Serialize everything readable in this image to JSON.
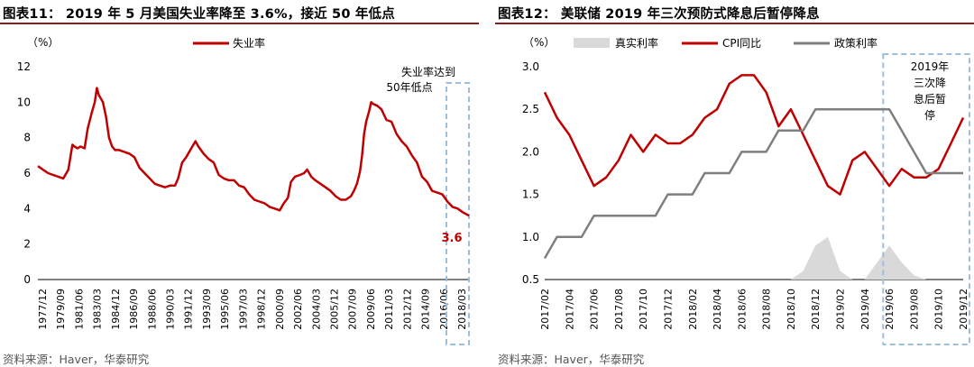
{
  "left": {
    "title": "图表11：  2019 年 5 月美国失业率降至 3.6%，接近 50 年低点",
    "source": "资料来源：Haver，华泰研究",
    "unit_label": "（%）",
    "annotation_lines": [
      "失业率达到",
      "50年低点"
    ],
    "end_value_label": "3.6",
    "colors": {
      "line": "#c00000",
      "box": "#9cbfe0"
    },
    "chart_data": {
      "type": "line",
      "title": "",
      "xlabel": "",
      "ylabel": "%",
      "ylim": [
        0,
        12
      ],
      "yticks": [
        0,
        2,
        4,
        6,
        8,
        10,
        12
      ],
      "x_range": [
        1977.0,
        2019.42
      ],
      "xtick_labels": [
        "1977/12",
        "1979/09",
        "1981/06",
        "1983/03",
        "1984/12",
        "1986/09",
        "1988/06",
        "1990/03",
        "1991/12",
        "1993/09",
        "1995/06",
        "1997/03",
        "1998/12",
        "2000/09",
        "2002/06",
        "2004/03",
        "2005/12",
        "2007/09",
        "2009/06",
        "2011/03",
        "2012/12",
        "2014/09",
        "2016/06",
        "2018/03"
      ],
      "highlight_x": [
        2017.2,
        2019.42
      ],
      "series": [
        {
          "name": "失业率",
          "x": [
            1977.0,
            1977.5,
            1978.0,
            1978.5,
            1979.0,
            1979.5,
            1980.0,
            1980.4,
            1980.6,
            1980.9,
            1981.2,
            1981.6,
            1981.9,
            1982.3,
            1982.6,
            1982.8,
            1983.0,
            1983.2,
            1983.4,
            1983.7,
            1984.0,
            1984.3,
            1984.6,
            1985.0,
            1985.5,
            1986.0,
            1986.5,
            1987.0,
            1987.5,
            1988.0,
            1988.5,
            1989.0,
            1989.5,
            1990.0,
            1990.5,
            1990.8,
            1991.2,
            1991.6,
            1992.0,
            1992.5,
            1992.8,
            1993.3,
            1993.8,
            1994.3,
            1994.8,
            1995.3,
            1995.8,
            1996.3,
            1996.8,
            1997.3,
            1997.8,
            1998.3,
            1998.8,
            1999.3,
            1999.8,
            2000.3,
            2000.8,
            2001.2,
            2001.6,
            2001.9,
            2002.3,
            2002.8,
            2003.2,
            2003.5,
            2003.9,
            2004.3,
            2004.8,
            2005.3,
            2005.8,
            2006.3,
            2006.8,
            2007.3,
            2007.8,
            2008.1,
            2008.4,
            2008.7,
            2008.9,
            2009.1,
            2009.3,
            2009.6,
            2009.8,
            2010.0,
            2010.4,
            2010.8,
            2011.3,
            2011.8,
            2012.3,
            2012.8,
            2013.3,
            2013.8,
            2014.3,
            2014.8,
            2015.3,
            2015.8,
            2016.3,
            2016.8,
            2017.3,
            2017.8,
            2018.3,
            2018.8,
            2019.1,
            2019.42
          ],
          "y": [
            6.4,
            6.2,
            6.0,
            5.9,
            5.8,
            5.7,
            6.2,
            7.6,
            7.5,
            7.4,
            7.5,
            7.4,
            8.5,
            9.4,
            10.0,
            10.8,
            10.4,
            10.2,
            10.0,
            9.2,
            8.0,
            7.5,
            7.3,
            7.3,
            7.2,
            7.1,
            6.9,
            6.3,
            6.0,
            5.7,
            5.4,
            5.3,
            5.2,
            5.3,
            5.3,
            5.7,
            6.6,
            6.9,
            7.3,
            7.8,
            7.5,
            7.1,
            6.8,
            6.6,
            5.9,
            5.7,
            5.6,
            5.6,
            5.3,
            5.2,
            4.8,
            4.5,
            4.4,
            4.3,
            4.1,
            4.0,
            3.9,
            4.3,
            4.6,
            5.5,
            5.8,
            5.9,
            6.0,
            6.2,
            5.8,
            5.6,
            5.4,
            5.2,
            5.0,
            4.7,
            4.5,
            4.5,
            4.7,
            5.0,
            5.4,
            6.1,
            7.0,
            8.2,
            8.9,
            9.5,
            10.0,
            9.9,
            9.8,
            9.6,
            9.0,
            8.9,
            8.2,
            7.8,
            7.5,
            7.0,
            6.6,
            5.8,
            5.5,
            5.0,
            4.9,
            4.8,
            4.4,
            4.1,
            4.0,
            3.8,
            3.7,
            3.6
          ]
        }
      ]
    }
  },
  "right": {
    "title": "图表12：  美联储 2019 年三次预防式降息后暂停降息",
    "source": "资料来源：Haver，华泰研究",
    "unit_label": "（%）",
    "annotation_lines": [
      "2019年",
      "三次降",
      "息后暂",
      "停"
    ],
    "colors": {
      "real_rate": "#d9d9d9",
      "cpi": "#c00000",
      "policy": "#7f7f7f",
      "box": "#9cbfe0"
    },
    "chart_data": {
      "type": "line",
      "title": "",
      "xlabel": "",
      "ylabel": "%",
      "ylim": [
        0.5,
        3.0
      ],
      "yticks": [
        0.5,
        1.0,
        1.5,
        2.0,
        2.5,
        3.0
      ],
      "xtick_labels": [
        "2017/02",
        "2017/04",
        "2017/06",
        "2017/08",
        "2017/10",
        "2017/12",
        "2018/02",
        "2018/04",
        "2018/06",
        "2018/08",
        "2018/10",
        "2018/12",
        "2019/02",
        "2019/04",
        "2019/06",
        "2019/08",
        "2019/10",
        "2019/12"
      ],
      "month_range": [
        0,
        34
      ],
      "highlight_month_start": 27.5,
      "series": [
        {
          "name": "真实利率",
          "kind": "area",
          "x": [
            20,
            21,
            22,
            23,
            24,
            25,
            26,
            27,
            28,
            29,
            30,
            31,
            32,
            33,
            34
          ],
          "y": [
            0.5,
            0.6,
            0.9,
            1.0,
            0.6,
            0.5,
            0.5,
            0.7,
            0.9,
            0.7,
            0.55,
            0.5,
            0.5,
            0.5,
            0.5
          ]
        },
        {
          "name": "CPI同比",
          "kind": "line",
          "x": [
            0,
            1,
            2,
            3,
            4,
            5,
            6,
            7,
            8,
            9,
            10,
            11,
            12,
            13,
            14,
            15,
            16,
            17,
            18,
            19,
            20,
            21,
            22,
            23,
            24,
            25,
            26,
            27,
            28,
            29,
            30,
            31,
            32,
            33,
            34
          ],
          "y": [
            2.7,
            2.4,
            2.2,
            1.9,
            1.6,
            1.7,
            1.9,
            2.2,
            2.0,
            2.2,
            2.1,
            2.1,
            2.2,
            2.4,
            2.5,
            2.8,
            2.9,
            2.9,
            2.7,
            2.3,
            2.5,
            2.2,
            1.9,
            1.6,
            1.5,
            1.9,
            2.0,
            1.8,
            1.6,
            1.8,
            1.7,
            1.7,
            1.8,
            2.1,
            2.4
          ]
        },
        {
          "name": "政策利率",
          "kind": "line",
          "x": [
            0,
            1,
            2,
            3,
            4,
            5,
            6,
            7,
            8,
            9,
            10,
            11,
            12,
            13,
            14,
            15,
            16,
            17,
            18,
            19,
            20,
            21,
            22,
            23,
            24,
            25,
            26,
            27,
            28,
            29,
            30,
            31,
            32,
            33,
            34
          ],
          "y": [
            0.75,
            1.0,
            1.0,
            1.0,
            1.25,
            1.25,
            1.25,
            1.25,
            1.25,
            1.25,
            1.5,
            1.5,
            1.5,
            1.75,
            1.75,
            1.75,
            2.0,
            2.0,
            2.0,
            2.25,
            2.25,
            2.25,
            2.5,
            2.5,
            2.5,
            2.5,
            2.5,
            2.5,
            2.5,
            2.25,
            2.0,
            1.75,
            1.75,
            1.75,
            1.75
          ]
        }
      ]
    }
  }
}
